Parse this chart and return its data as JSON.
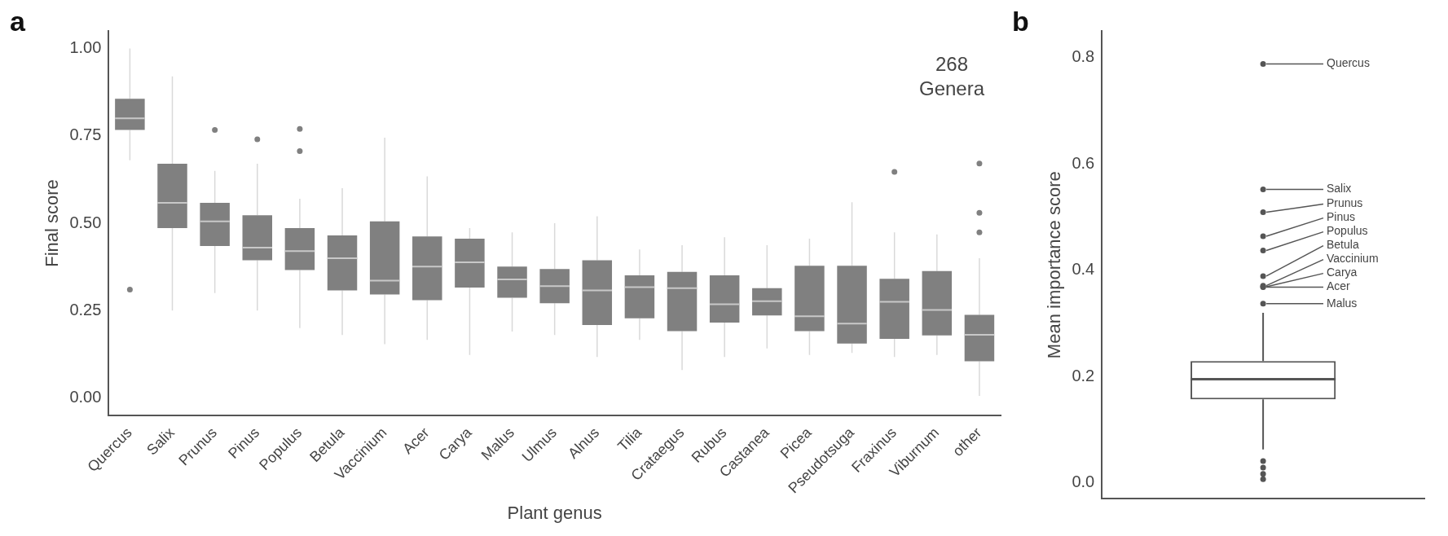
{
  "chart_data": [
    {
      "type": "box",
      "title": "a",
      "xlabel": "Plant genus",
      "ylabel": "Final score",
      "categories": [
        "Quercus",
        "Salix",
        "Prunus",
        "Pinus",
        "Populus",
        "Betula",
        "Vaccinium",
        "Acer",
        "Carya",
        "Malus",
        "Ulmus",
        "Alnus",
        "Tilia",
        "Crataegus",
        "Rubus",
        "Castanea",
        "Picea",
        "Pseudotsuga",
        "Fraxinus",
        "Viburnum",
        "other"
      ],
      "ylim": [
        -0.05,
        1.05
      ],
      "yticks": [
        {
          "value": 0,
          "label": "0.00"
        },
        {
          "value": 0.25,
          "label": "0.25"
        },
        {
          "value": 0.5,
          "label": "0.50"
        },
        {
          "value": 0.75,
          "label": "0.75"
        },
        {
          "value": 1,
          "label": "1.00"
        }
      ],
      "annotations": [
        "268 Genera"
      ],
      "series": [
        {
          "color": "#808080",
          "boxes": [
            {
              "low": 0.68,
              "q1": 0.767,
              "median": 0.8,
              "q3": 0.856,
              "high": 1.0,
              "outliers": [
                0.31
              ]
            },
            {
              "low": 0.25,
              "q1": 0.486,
              "median": 0.558,
              "q3": 0.67,
              "high": 0.92
            },
            {
              "low": 0.3,
              "q1": 0.435,
              "median": 0.505,
              "q3": 0.558,
              "high": 0.65,
              "outliers": [
                0.767
              ]
            },
            {
              "low": 0.25,
              "q1": 0.394,
              "median": 0.43,
              "q3": 0.523,
              "high": 0.67,
              "outliers": [
                0.74
              ]
            },
            {
              "low": 0.2,
              "q1": 0.366,
              "median": 0.42,
              "q3": 0.486,
              "high": 0.57,
              "outliers": [
                0.77,
                0.706
              ]
            },
            {
              "low": 0.18,
              "q1": 0.308,
              "median": 0.4,
              "q3": 0.465,
              "high": 0.6
            },
            {
              "low": 0.154,
              "q1": 0.296,
              "median": 0.336,
              "q3": 0.505,
              "high": 0.745
            },
            {
              "low": 0.166,
              "q1": 0.28,
              "median": 0.376,
              "q3": 0.462,
              "high": 0.634
            },
            {
              "low": 0.123,
              "q1": 0.316,
              "median": 0.388,
              "q3": 0.456,
              "high": 0.486
            },
            {
              "low": 0.19,
              "q1": 0.287,
              "median": 0.339,
              "q3": 0.376,
              "high": 0.474
            },
            {
              "low": 0.18,
              "q1": 0.271,
              "median": 0.32,
              "q3": 0.369,
              "high": 0.5
            },
            {
              "low": 0.117,
              "q1": 0.209,
              "median": 0.308,
              "q3": 0.394,
              "high": 0.52
            },
            {
              "low": 0.166,
              "q1": 0.228,
              "median": 0.317,
              "q3": 0.351,
              "high": 0.425
            },
            {
              "low": 0.08,
              "q1": 0.191,
              "median": 0.314,
              "q3": 0.361,
              "high": 0.437
            },
            {
              "low": 0.117,
              "q1": 0.216,
              "median": 0.268,
              "q3": 0.351,
              "high": 0.46
            },
            {
              "low": 0.142,
              "q1": 0.236,
              "median": 0.277,
              "q3": 0.314,
              "high": 0.437
            },
            {
              "low": 0.123,
              "q1": 0.191,
              "median": 0.234,
              "q3": 0.378,
              "high": 0.456
            },
            {
              "low": 0.129,
              "q1": 0.156,
              "median": 0.213,
              "q3": 0.378,
              "high": 0.56
            },
            {
              "low": 0.117,
              "q1": 0.169,
              "median": 0.275,
              "q3": 0.341,
              "high": 0.474,
              "outliers": [
                0.647
              ]
            },
            {
              "low": 0.123,
              "q1": 0.179,
              "median": 0.252,
              "q3": 0.363,
              "high": 0.468
            },
            {
              "low": 0.006,
              "q1": 0.105,
              "median": 0.181,
              "q3": 0.238,
              "high": 0.4,
              "outliers": [
                0.474,
                0.53,
                0.671
              ]
            }
          ]
        }
      ]
    },
    {
      "type": "box",
      "title": "b",
      "ylabel": "Mean importance score",
      "categories": [
        null
      ],
      "ylim": [
        -0.03,
        0.85
      ],
      "yticks": [
        {
          "value": 0,
          "label": "0.0"
        },
        0.2,
        0.4,
        0.6,
        0.8
      ],
      "annotations": [
        "Quercus",
        "Salix",
        "Prunus",
        "Pinus",
        "Populus",
        "Betula",
        "Vaccinium",
        "Carya",
        "Acer",
        "Malus"
      ],
      "series": [
        {
          "color": "#555555",
          "boxes": [
            {
              "low": 0.063,
              "q1": 0.157,
              "median": 0.195,
              "q3": 0.229,
              "high": 0.32,
              "outliers": [
                0.788,
                0.552,
                0.509,
                0.464,
                0.437,
                0.389,
                0.371,
                0.369,
                0.368,
                0.337,
                0.041,
                0.029,
                0.017,
                0.007
              ]
            }
          ]
        }
      ]
    }
  ]
}
